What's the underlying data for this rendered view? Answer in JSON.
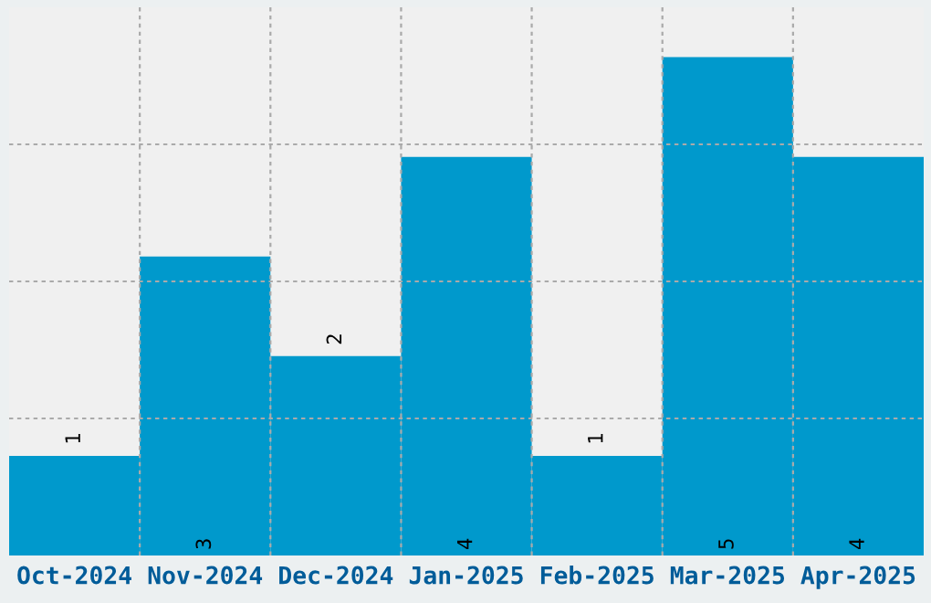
{
  "chart_data": {
    "type": "bar",
    "categories": [
      "Oct-2024",
      "Nov-2024",
      "Dec-2024",
      "Jan-2025",
      "Feb-2025",
      "Mar-2025",
      "Apr-2025"
    ],
    "values": [
      1,
      3,
      2,
      4,
      1,
      5,
      4
    ],
    "color": "#0099cc",
    "ylim": [
      0,
      5.5
    ],
    "yticks": [
      {
        "value": 1.375,
        "label": null
      },
      {
        "value": 2.75,
        "label": null
      },
      {
        "value": 4.125,
        "label": null
      }
    ],
    "tick_labels": "x",
    "grid": true,
    "data_labels": true
  }
}
